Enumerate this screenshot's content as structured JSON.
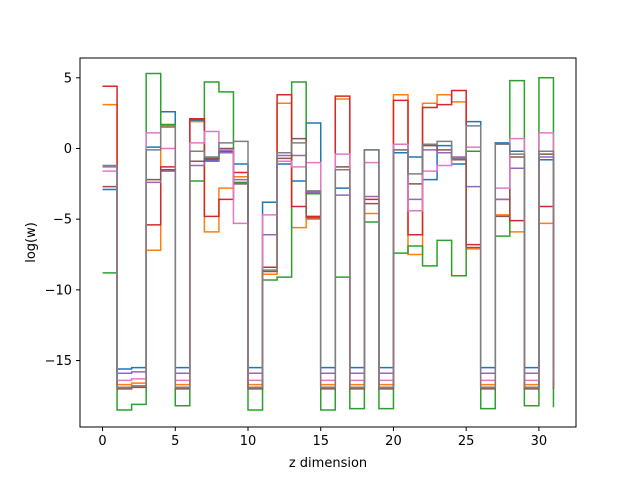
{
  "chart_data": {
    "type": "line",
    "step": "post",
    "xlabel": "z dimension",
    "ylabel": "log(w)",
    "xlim": [
      -1.55,
      32.55
    ],
    "ylim": [
      -19.7,
      6.4
    ],
    "xticks": [
      0,
      5,
      10,
      15,
      20,
      25,
      30
    ],
    "yticks": [
      5,
      0,
      -5,
      -10,
      -15
    ],
    "x": [
      0,
      1,
      2,
      3,
      4,
      5,
      6,
      7,
      8,
      9,
      10,
      11,
      12,
      13,
      14,
      15,
      16,
      17,
      18,
      19,
      20,
      21,
      22,
      23,
      24,
      25,
      26,
      27,
      28,
      29,
      30,
      31
    ],
    "series": [
      {
        "color": "#1f77b4",
        "values": [
          -2.9,
          -15.6,
          -15.5,
          0.1,
          2.6,
          -15.5,
          2.0,
          -0.8,
          -0.2,
          -1.1,
          -15.5,
          -3.8,
          -1.1,
          -2.3,
          1.8,
          -15.5,
          -2.8,
          -15.5,
          -0.1,
          -15.5,
          -0.3,
          -0.6,
          -2.2,
          0.2,
          -1.1,
          1.9,
          -15.5,
          0.4,
          -0.2,
          -15.5,
          -0.8,
          -15.5
        ]
      },
      {
        "color": "#ff7f0e",
        "values": [
          3.1,
          -16.7,
          -16.6,
          -7.2,
          1.5,
          -16.7,
          1.9,
          -5.9,
          -2.8,
          -2.0,
          -16.7,
          -8.9,
          3.2,
          -5.6,
          -5.0,
          -16.7,
          3.5,
          -16.7,
          -4.6,
          -16.7,
          3.8,
          -7.5,
          3.2,
          3.8,
          3.3,
          -7.1,
          -16.7,
          -4.7,
          -5.9,
          -16.7,
          -5.3,
          -16.7
        ]
      },
      {
        "color": "#2ca02c",
        "values": [
          -8.8,
          -18.5,
          -18.1,
          5.3,
          1.7,
          -18.2,
          -2.3,
          4.7,
          4.0,
          -2.4,
          -18.5,
          -9.3,
          -9.1,
          4.7,
          -3.2,
          -18.5,
          -9.1,
          -18.4,
          -5.2,
          -18.4,
          -7.4,
          -6.9,
          -8.3,
          -6.5,
          -9.0,
          -0.2,
          -18.4,
          -6.2,
          4.8,
          -18.2,
          5.0,
          -18.3
        ]
      },
      {
        "color": "#d62728",
        "values": [
          4.4,
          -16.9,
          -16.8,
          -5.4,
          -1.3,
          -16.9,
          2.1,
          -4.8,
          -3.6,
          -1.7,
          -16.9,
          -8.4,
          3.8,
          -4.1,
          -4.8,
          -16.9,
          3.7,
          -16.9,
          -3.6,
          -16.9,
          3.4,
          -6.1,
          2.9,
          3.1,
          4.1,
          -6.8,
          -16.9,
          -3.6,
          -5.1,
          -16.9,
          -4.1,
          -16.9
        ]
      },
      {
        "color": "#9467bd",
        "values": [
          -1.3,
          -15.9,
          -15.8,
          -2.4,
          -1.6,
          -15.9,
          -1.2,
          -0.9,
          -0.3,
          -2.2,
          -15.9,
          -6.1,
          -0.5,
          -0.5,
          -3.1,
          -15.9,
          -3.3,
          -15.9,
          -3.4,
          -15.9,
          0.3,
          -3.6,
          -0.1,
          -0.3,
          -0.6,
          -2.7,
          -15.9,
          -3.6,
          -1.4,
          -15.9,
          -0.6,
          -15.9
        ]
      },
      {
        "color": "#8c564b",
        "values": [
          -2.7,
          -17.0,
          -16.9,
          -2.2,
          -1.5,
          -17.0,
          -0.9,
          -0.7,
          0.0,
          -2.5,
          -17.0,
          -8.7,
          -0.7,
          0.7,
          -4.9,
          -17.0,
          -1.3,
          -17.0,
          -3.9,
          -17.0,
          -0.1,
          -2.5,
          0.2,
          -0.1,
          -0.8,
          -7.0,
          -17.0,
          -4.8,
          -0.6,
          -17.0,
          -0.4,
          -17.0
        ]
      },
      {
        "color": "#e377c2",
        "values": [
          -1.6,
          -16.4,
          -16.3,
          1.1,
          0.0,
          -16.4,
          0.4,
          1.2,
          -0.1,
          -5.3,
          -16.4,
          -4.7,
          -0.9,
          -1.3,
          -1.0,
          -16.4,
          -0.4,
          -16.4,
          -1.0,
          -16.4,
          0.3,
          -4.4,
          -1.6,
          -1.2,
          -0.7,
          0.1,
          -16.4,
          -2.8,
          0.7,
          -16.4,
          1.1,
          -16.4
        ]
      },
      {
        "color": "#7f7f7f",
        "values": [
          -1.2,
          -16.9,
          -16.8,
          -0.1,
          1.6,
          -16.9,
          -0.2,
          -0.6,
          0.4,
          0.5,
          -16.9,
          -8.6,
          -0.3,
          0.4,
          -3.0,
          -16.9,
          -1.5,
          -16.9,
          -0.1,
          -16.9,
          -0.1,
          -1.8,
          0.3,
          0.5,
          -0.7,
          1.6,
          -16.9,
          0.3,
          -0.4,
          -16.9,
          -0.2,
          -16.9
        ]
      }
    ],
    "grid": false,
    "legend": "none"
  }
}
